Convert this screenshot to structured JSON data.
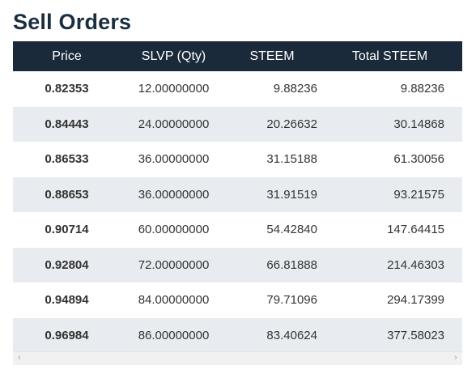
{
  "page": {
    "title": "Sell Orders"
  },
  "table": {
    "columns": [
      "Price",
      "SLVP (Qty)",
      "STEEM",
      "Total STEEM"
    ],
    "rows": [
      {
        "price": "0.82353",
        "qty": "12.00000000",
        "steem": "9.88236",
        "total": "9.88236"
      },
      {
        "price": "0.84443",
        "qty": "24.00000000",
        "steem": "20.26632",
        "total": "30.14868"
      },
      {
        "price": "0.86533",
        "qty": "36.00000000",
        "steem": "31.15188",
        "total": "61.30056"
      },
      {
        "price": "0.88653",
        "qty": "36.00000000",
        "steem": "31.91519",
        "total": "93.21575"
      },
      {
        "price": "0.90714",
        "qty": "60.00000000",
        "steem": "54.42840",
        "total": "147.64415"
      },
      {
        "price": "0.92804",
        "qty": "72.00000000",
        "steem": "66.81888",
        "total": "214.46303"
      },
      {
        "price": "0.94894",
        "qty": "84.00000000",
        "steem": "79.71096",
        "total": "294.17399"
      },
      {
        "price": "0.96984",
        "qty": "86.00000000",
        "steem": "83.40624",
        "total": "377.58023"
      }
    ]
  },
  "scrollbar": {
    "left_icon": "chevron-left-icon",
    "right_icon": "chevron-right-icon",
    "left_glyph": "‹",
    "right_glyph": "›"
  },
  "colors": {
    "title": "#1a2e40",
    "header_bg": "#1b2a3b",
    "row_alt_bg": "#e8ecf0"
  }
}
